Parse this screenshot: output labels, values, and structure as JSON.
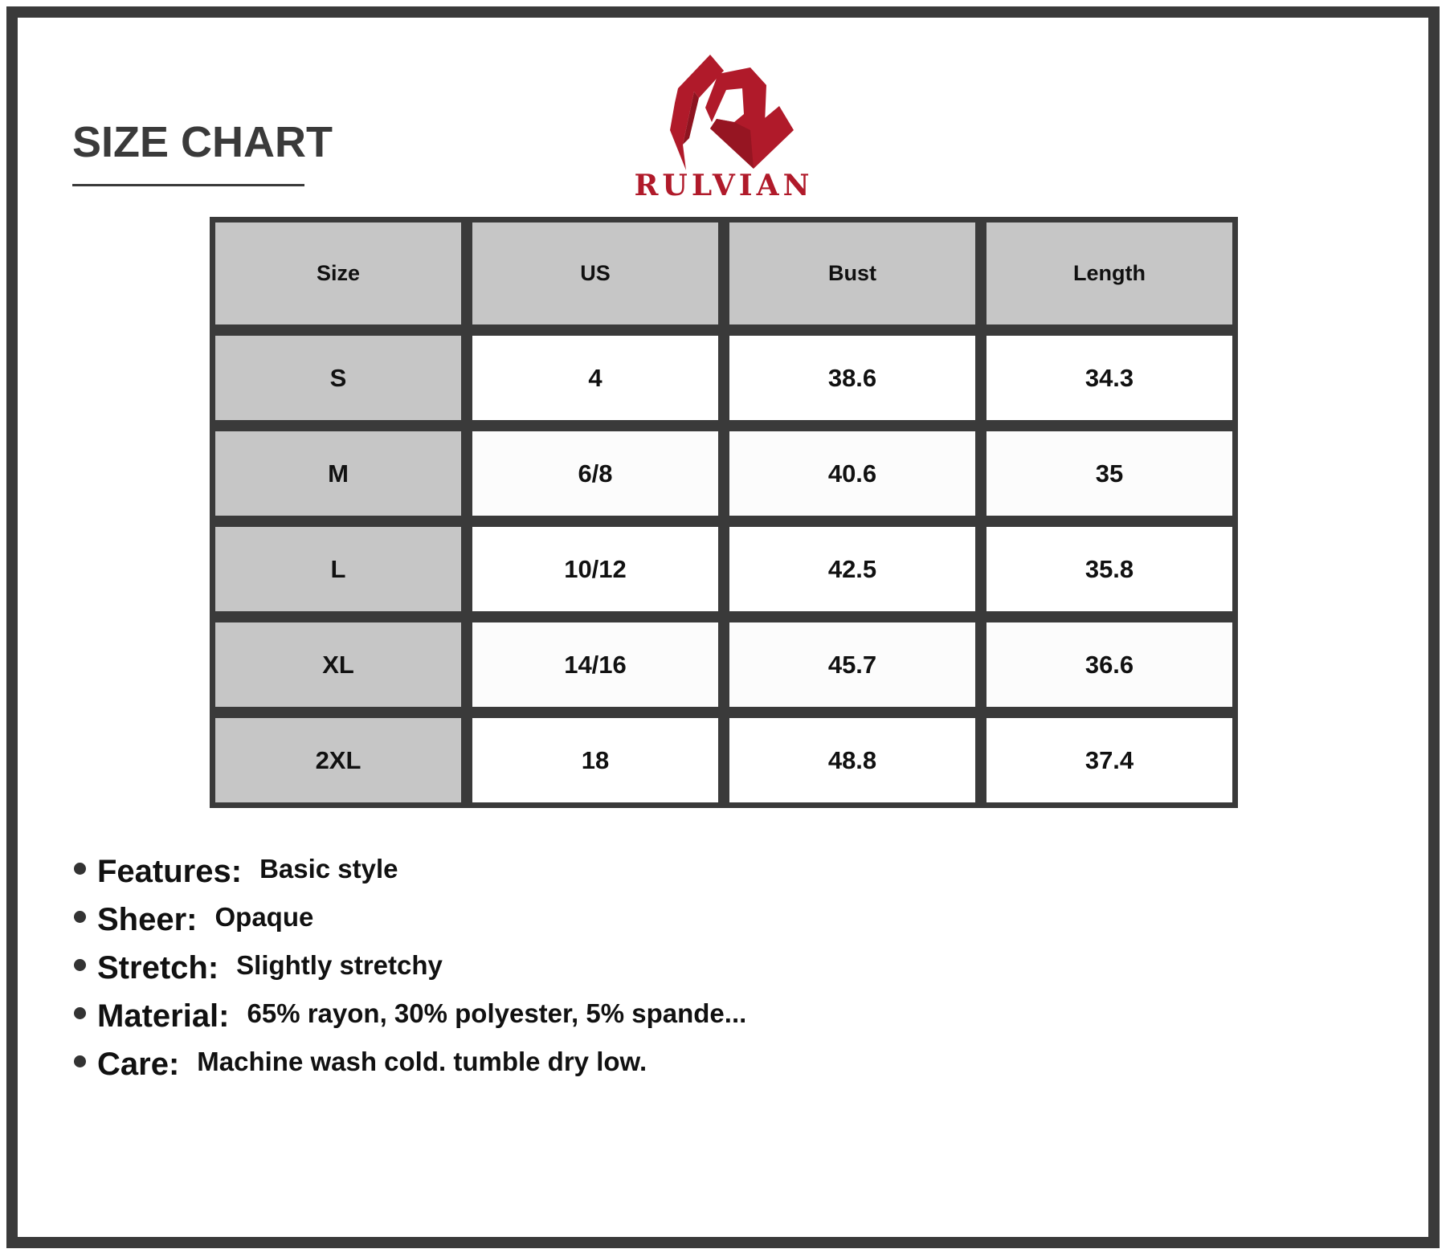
{
  "title": "SIZE CHART",
  "brand": {
    "name": "RULVIAN",
    "color": "#b01a2a"
  },
  "table": {
    "headers": [
      "Size",
      "US",
      "Bust",
      "Length"
    ],
    "rows": [
      [
        "S",
        "4",
        "38.6",
        "34.3"
      ],
      [
        "M",
        "6/8",
        "40.6",
        "35"
      ],
      [
        "L",
        "10/12",
        "42.5",
        "35.8"
      ],
      [
        "XL",
        "14/16",
        "45.7",
        "36.6"
      ],
      [
        "2XL",
        "18",
        "48.8",
        "37.4"
      ]
    ]
  },
  "features": [
    {
      "label": "Features:",
      "value": "Basic style"
    },
    {
      "label": "Sheer:",
      "value": "Opaque"
    },
    {
      "label": "Stretch:",
      "value": "Slightly stretchy"
    },
    {
      "label": "Material:",
      "value": "65% rayon, 30% polyester, 5% spande..."
    },
    {
      "label": "Care:",
      "value": "Machine wash cold. tumble dry low."
    }
  ]
}
